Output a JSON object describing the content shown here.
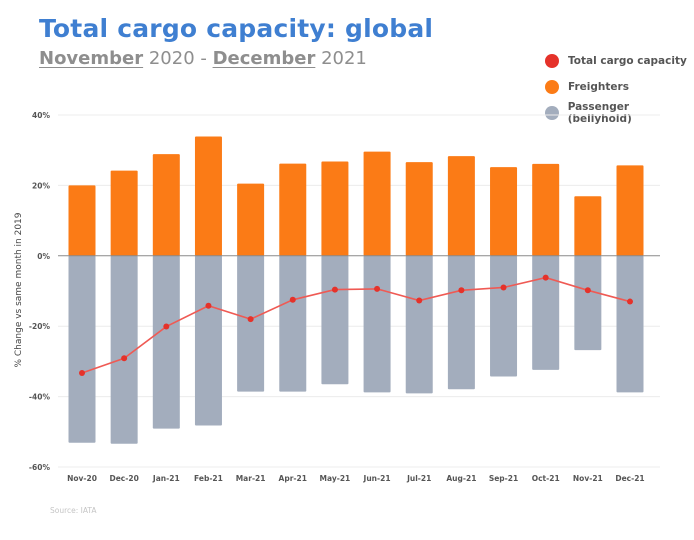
{
  "header": {
    "title": "Total cargo capacity: global",
    "subtitle_parts": [
      "November",
      " 2020 - ",
      "December",
      " 2021"
    ]
  },
  "legend": [
    {
      "label": "Total cargo capacity",
      "color": "#e5322a"
    },
    {
      "label": "Freighters",
      "color": "#fb7b16"
    },
    {
      "label": "Passenger (bellyhold)",
      "color": "#a3adbd"
    }
  ],
  "source": "Source: IATA",
  "chart_data": {
    "type": "bar",
    "title": "Total cargo capacity: global",
    "subtitle": "November 2020 - December 2021",
    "xlabel": "",
    "ylabel": "% Change vs same month in 2019",
    "ylim": [
      -60,
      40
    ],
    "yticks": [
      40,
      20,
      0,
      -20,
      -40,
      -60
    ],
    "ytick_labels": [
      "40%",
      "20%",
      "0%",
      "-20%",
      "-40%",
      "-60%"
    ],
    "grid": true,
    "legend_position": "top-right",
    "categories": [
      "Nov-20",
      "Dec-20",
      "Jan-21",
      "Feb-21",
      "Mar-21",
      "Apr-21",
      "May-21",
      "Jun-21",
      "Jul-21",
      "Aug-21",
      "Sep-21",
      "Oct-21",
      "Nov-21",
      "Dec-21"
    ],
    "series": [
      {
        "name": "Freighters",
        "type": "bar",
        "color": "#fb7b16",
        "values": [
          20.0,
          24.2,
          28.9,
          33.9,
          20.5,
          26.2,
          26.8,
          29.6,
          26.6,
          28.3,
          25.2,
          26.1,
          16.9,
          25.7
        ]
      },
      {
        "name": "Passenger (bellyhold)",
        "type": "bar",
        "color": "#a3adbd",
        "values": [
          -53.1,
          -53.4,
          -49.1,
          -48.2,
          -38.6,
          -38.6,
          -36.5,
          -38.8,
          -39.1,
          -37.9,
          -34.3,
          -32.4,
          -26.8,
          -38.8
        ]
      },
      {
        "name": "Total cargo capacity",
        "type": "line",
        "color": "#e5322a",
        "values": [
          -33.3,
          -29.1,
          -20.1,
          -14.2,
          -18.0,
          -12.5,
          -9.6,
          -9.4,
          -12.7,
          -9.8,
          -9.0,
          -6.2,
          -9.8,
          -13.0
        ]
      }
    ],
    "source": "Source: IATA"
  }
}
